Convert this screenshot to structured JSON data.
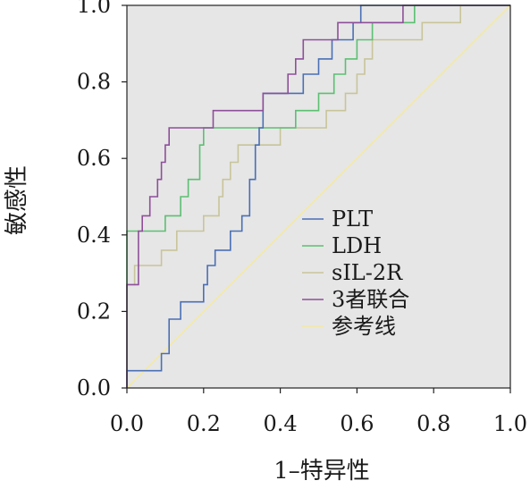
{
  "chart_data": {
    "type": "line",
    "xlabel": "1–特异性",
    "ylabel": "敏感性",
    "xlim": [
      0,
      1
    ],
    "ylim": [
      0,
      1
    ],
    "xticks": [
      "0.0",
      "0.2",
      "0.4",
      "0.6",
      "0.8",
      "1.0"
    ],
    "yticks": [
      "0.0",
      "0.2",
      "0.4",
      "0.6",
      "0.8",
      "1.0"
    ],
    "grid": false,
    "legend_position": "center-right",
    "plot_background": "#e6e6e6",
    "series": [
      {
        "name": "PLT",
        "color": "#4a6fb5",
        "points": [
          [
            0,
            0
          ],
          [
            0,
            0.045
          ],
          [
            0.045,
            0.045
          ],
          [
            0.09,
            0.045
          ],
          [
            0.09,
            0.09
          ],
          [
            0.11,
            0.09
          ],
          [
            0.11,
            0.18
          ],
          [
            0.14,
            0.18
          ],
          [
            0.14,
            0.225
          ],
          [
            0.2,
            0.225
          ],
          [
            0.2,
            0.27
          ],
          [
            0.21,
            0.27
          ],
          [
            0.21,
            0.32
          ],
          [
            0.23,
            0.32
          ],
          [
            0.23,
            0.36
          ],
          [
            0.27,
            0.36
          ],
          [
            0.27,
            0.41
          ],
          [
            0.3,
            0.41
          ],
          [
            0.3,
            0.45
          ],
          [
            0.32,
            0.45
          ],
          [
            0.32,
            0.545
          ],
          [
            0.335,
            0.545
          ],
          [
            0.335,
            0.635
          ],
          [
            0.345,
            0.635
          ],
          [
            0.345,
            0.68
          ],
          [
            0.355,
            0.68
          ],
          [
            0.355,
            0.77
          ],
          [
            0.46,
            0.77
          ],
          [
            0.46,
            0.82
          ],
          [
            0.5,
            0.82
          ],
          [
            0.5,
            0.86
          ],
          [
            0.535,
            0.86
          ],
          [
            0.535,
            0.91
          ],
          [
            0.59,
            0.91
          ],
          [
            0.59,
            0.955
          ],
          [
            0.61,
            0.955
          ],
          [
            0.61,
            1.0
          ],
          [
            1.0,
            1.0
          ]
        ]
      },
      {
        "name": "LDH",
        "color": "#5cbf72",
        "points": [
          [
            0,
            0
          ],
          [
            0,
            0.41
          ],
          [
            0.1,
            0.41
          ],
          [
            0.1,
            0.45
          ],
          [
            0.14,
            0.45
          ],
          [
            0.14,
            0.5
          ],
          [
            0.16,
            0.5
          ],
          [
            0.16,
            0.545
          ],
          [
            0.19,
            0.545
          ],
          [
            0.19,
            0.635
          ],
          [
            0.2,
            0.635
          ],
          [
            0.2,
            0.68
          ],
          [
            0.44,
            0.68
          ],
          [
            0.44,
            0.725
          ],
          [
            0.5,
            0.725
          ],
          [
            0.5,
            0.77
          ],
          [
            0.54,
            0.77
          ],
          [
            0.54,
            0.82
          ],
          [
            0.57,
            0.82
          ],
          [
            0.57,
            0.86
          ],
          [
            0.6,
            0.86
          ],
          [
            0.6,
            0.91
          ],
          [
            0.64,
            0.91
          ],
          [
            0.64,
            0.955
          ],
          [
            0.75,
            0.955
          ],
          [
            0.75,
            1.0
          ],
          [
            1.0,
            1.0
          ]
        ]
      },
      {
        "name": "sIL-2R",
        "color": "#c8c49a",
        "points": [
          [
            0,
            0
          ],
          [
            0,
            0.27
          ],
          [
            0.02,
            0.27
          ],
          [
            0.02,
            0.32
          ],
          [
            0.09,
            0.32
          ],
          [
            0.09,
            0.36
          ],
          [
            0.13,
            0.36
          ],
          [
            0.13,
            0.41
          ],
          [
            0.2,
            0.41
          ],
          [
            0.2,
            0.45
          ],
          [
            0.24,
            0.45
          ],
          [
            0.24,
            0.5
          ],
          [
            0.25,
            0.5
          ],
          [
            0.25,
            0.545
          ],
          [
            0.27,
            0.545
          ],
          [
            0.27,
            0.59
          ],
          [
            0.29,
            0.59
          ],
          [
            0.29,
            0.635
          ],
          [
            0.4,
            0.635
          ],
          [
            0.4,
            0.68
          ],
          [
            0.52,
            0.68
          ],
          [
            0.52,
            0.725
          ],
          [
            0.57,
            0.725
          ],
          [
            0.57,
            0.77
          ],
          [
            0.6,
            0.77
          ],
          [
            0.6,
            0.82
          ],
          [
            0.62,
            0.82
          ],
          [
            0.62,
            0.86
          ],
          [
            0.64,
            0.86
          ],
          [
            0.64,
            0.91
          ],
          [
            0.77,
            0.91
          ],
          [
            0.77,
            0.955
          ],
          [
            0.87,
            0.955
          ],
          [
            0.87,
            1.0
          ],
          [
            1.0,
            1.0
          ]
        ]
      },
      {
        "name": "3者联合",
        "color": "#8e4f9a",
        "points": [
          [
            0,
            0
          ],
          [
            0,
            0.27
          ],
          [
            0.03,
            0.27
          ],
          [
            0.03,
            0.41
          ],
          [
            0.04,
            0.41
          ],
          [
            0.04,
            0.45
          ],
          [
            0.06,
            0.45
          ],
          [
            0.06,
            0.5
          ],
          [
            0.08,
            0.5
          ],
          [
            0.08,
            0.545
          ],
          [
            0.09,
            0.545
          ],
          [
            0.09,
            0.59
          ],
          [
            0.1,
            0.59
          ],
          [
            0.1,
            0.635
          ],
          [
            0.11,
            0.635
          ],
          [
            0.11,
            0.68
          ],
          [
            0.225,
            0.68
          ],
          [
            0.225,
            0.725
          ],
          [
            0.355,
            0.725
          ],
          [
            0.355,
            0.77
          ],
          [
            0.42,
            0.77
          ],
          [
            0.42,
            0.82
          ],
          [
            0.44,
            0.82
          ],
          [
            0.44,
            0.86
          ],
          [
            0.46,
            0.86
          ],
          [
            0.46,
            0.91
          ],
          [
            0.55,
            0.91
          ],
          [
            0.55,
            0.955
          ],
          [
            0.72,
            0.955
          ],
          [
            0.72,
            1.0
          ],
          [
            1.0,
            1.0
          ]
        ]
      },
      {
        "name": "参考线",
        "color": "#f3e9a6",
        "points": [
          [
            0,
            0
          ],
          [
            1,
            1
          ]
        ]
      }
    ]
  }
}
